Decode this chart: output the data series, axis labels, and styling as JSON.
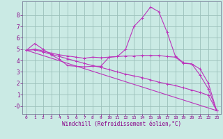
{
  "bg_color": "#caeae4",
  "line_color": "#bb33bb",
  "grid_color": "#9bbfba",
  "xlabel": "Windchill (Refroidissement éolien,°C)",
  "xlim": [
    -0.5,
    23.5
  ],
  "ylim": [
    -0.7,
    9.2
  ],
  "yticks": [
    0,
    1,
    2,
    3,
    4,
    5,
    6,
    7,
    8
  ],
  "ytick_labels": [
    "-0",
    "1",
    "2",
    "3",
    "4",
    "5",
    "6",
    "7",
    "8"
  ],
  "xticks": [
    0,
    1,
    2,
    3,
    4,
    5,
    6,
    7,
    8,
    9,
    10,
    11,
    12,
    13,
    14,
    15,
    16,
    17,
    18,
    19,
    20,
    21,
    22,
    23
  ],
  "line1_x": [
    0,
    1,
    2,
    3,
    4,
    5,
    6,
    7,
    8,
    9,
    10,
    11,
    12,
    13,
    14,
    15,
    16,
    17,
    18,
    19,
    20,
    21,
    22,
    23
  ],
  "line1_y": [
    4.9,
    5.5,
    5.0,
    4.5,
    4.1,
    3.55,
    3.5,
    3.45,
    3.5,
    3.5,
    4.3,
    4.35,
    5.0,
    7.0,
    7.75,
    8.7,
    8.3,
    6.5,
    4.4,
    3.8,
    3.7,
    2.7,
    1.5,
    -0.4
  ],
  "line2_x": [
    0,
    1,
    2,
    3,
    4,
    5,
    6,
    7,
    8,
    9,
    10,
    11,
    12,
    13,
    14,
    15,
    16,
    17,
    18,
    19,
    20,
    21,
    22,
    23
  ],
  "line2_y": [
    4.9,
    5.0,
    4.85,
    4.65,
    4.5,
    4.4,
    4.3,
    4.2,
    4.3,
    4.25,
    4.3,
    4.35,
    4.4,
    4.4,
    4.45,
    4.45,
    4.45,
    4.35,
    4.3,
    3.75,
    3.7,
    3.25,
    2.0,
    -0.4
  ],
  "line3_x": [
    0,
    23
  ],
  "line3_y": [
    4.9,
    -0.4
  ],
  "line4_x": [
    0,
    1,
    2,
    3,
    4,
    5,
    6,
    7,
    8,
    9,
    10,
    11,
    12,
    13,
    14,
    15,
    16,
    17,
    18,
    19,
    20,
    21,
    22,
    23
  ],
  "line4_y": [
    4.9,
    4.95,
    4.75,
    4.55,
    4.35,
    4.15,
    3.95,
    3.75,
    3.55,
    3.4,
    3.2,
    3.0,
    2.8,
    2.65,
    2.5,
    2.3,
    2.1,
    1.95,
    1.8,
    1.6,
    1.4,
    1.2,
    0.95,
    -0.4
  ]
}
